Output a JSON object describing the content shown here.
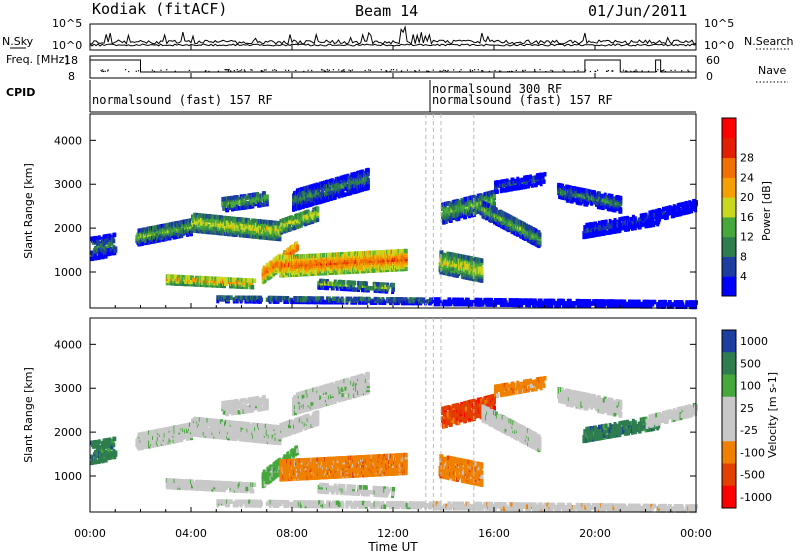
{
  "header": {
    "station": "Kodiak (fitACF)",
    "beam": "Beam 14",
    "date": "01/Jun/2011"
  },
  "colors": {
    "power": [
      "#0000ff",
      "#1c3ea0",
      "#2e7d4f",
      "#46a83c",
      "#c8d81e",
      "#f5a000",
      "#f07000",
      "#e22000",
      "#ff0000"
    ],
    "velocity": [
      "#1c3ea0",
      "#2e7d4f",
      "#46a83c",
      "#c8c8c8",
      "#c8c8c8",
      "#f08000",
      "#e24000",
      "#ff0000"
    ]
  },
  "chart_data": [
    {
      "type": "line",
      "panel": "noise",
      "left_label": "N.Sky",
      "right_label": "N.Search",
      "left_ticks": [
        "10^5",
        "10^0"
      ],
      "right_ticks": [
        "10^5",
        "10^0"
      ]
    },
    {
      "type": "line",
      "panel": "frequency",
      "left_label": "Freq. [MHz]",
      "right_label": "Nave",
      "left_ticks": [
        "18",
        "8"
      ],
      "right_ticks": [
        "60",
        "0"
      ],
      "freq_steps": [
        {
          "t": 0.0,
          "f": 17
        },
        {
          "t": 2.0,
          "f": 11
        },
        {
          "t": 19.6,
          "f": 17
        },
        {
          "t": 21.0,
          "f": 11
        },
        {
          "t": 22.4,
          "f": 17
        },
        {
          "t": 22.6,
          "f": 11
        }
      ]
    },
    {
      "type": "table",
      "panel": "cpid",
      "label": "CPID",
      "entries": [
        {
          "t": 0.0,
          "text": "normalsound (fast) 157 RF"
        },
        {
          "t": 13.6,
          "text": "normalsound (fast) 157 RF"
        },
        {
          "t": 13.6,
          "text": "normalsound 300 RF"
        }
      ]
    },
    {
      "type": "heatmap",
      "panel": "power",
      "ylabel": "Slant Range [km]",
      "ylim": [
        180,
        4600
      ],
      "yticks": [
        1000,
        2000,
        3000,
        4000
      ],
      "colorbar_label": "Power [dB]",
      "colorbar_ticks": [
        4,
        8,
        12,
        16,
        20,
        24,
        28
      ]
    },
    {
      "type": "heatmap",
      "panel": "velocity",
      "ylabel": "Slant Range [km]",
      "ylim": [
        180,
        4600
      ],
      "yticks": [
        1000,
        2000,
        3000,
        4000
      ],
      "colorbar_label": "Velocity [m s-1]",
      "colorbar_ticks": [
        "1000",
        "500",
        "100",
        "25",
        "-25",
        "-100",
        "-500",
        "-1000"
      ]
    }
  ],
  "xaxis": {
    "xlabel": "Time UT",
    "ticks": [
      "00:00",
      "04:00",
      "08:00",
      "12:00",
      "16:00",
      "20:00",
      "00:00"
    ],
    "range_hours": [
      0,
      24
    ]
  }
}
